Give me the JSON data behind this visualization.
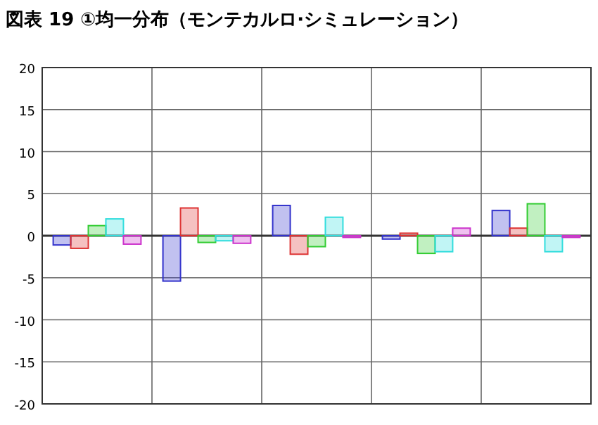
{
  "chart_data": {
    "type": "bar",
    "title": "図表 19 ①均一分布（モンテカルロ·シミュレーション）",
    "categories": [
      null,
      null,
      null,
      null,
      null
    ],
    "series": [
      {
        "color": "#3333cc",
        "values": [
          -1.1,
          -5.4,
          3.6,
          -0.4,
          3.0
        ]
      },
      {
        "color": "#dd3333",
        "values": [
          -1.5,
          3.3,
          -2.2,
          0.3,
          0.9
        ]
      },
      {
        "color": "#33cc33",
        "values": [
          1.2,
          -0.8,
          -1.3,
          -2.1,
          3.8
        ]
      },
      {
        "color": "#33dddd",
        "values": [
          2.0,
          -0.6,
          2.2,
          -1.9,
          -1.9
        ]
      },
      {
        "color": "#cc33cc",
        "values": [
          -1.0,
          -0.9,
          -0.2,
          0.9,
          -0.2
        ]
      }
    ],
    "ylim": [
      -20,
      20
    ],
    "yticks": [
      -20,
      -15,
      -10,
      -5,
      0,
      5,
      10,
      15,
      20
    ],
    "grid": true
  }
}
